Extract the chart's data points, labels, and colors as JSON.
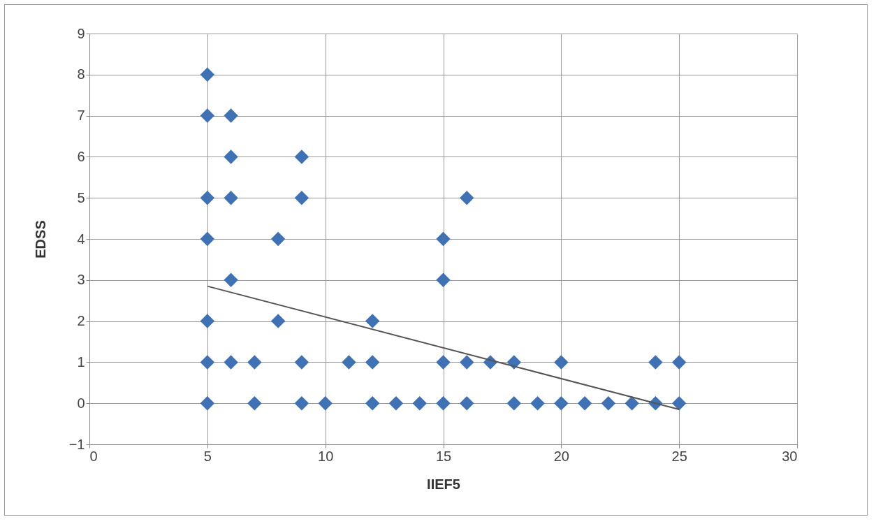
{
  "chart_data": {
    "type": "scatter",
    "xlabel": "IIEF5",
    "ylabel": "EDSS",
    "xlim": [
      0,
      30
    ],
    "ylim": [
      -1,
      9
    ],
    "xticks": [
      0,
      5,
      10,
      15,
      20,
      25,
      30
    ],
    "yticks": [
      -1,
      0,
      1,
      2,
      3,
      4,
      5,
      6,
      7,
      8,
      9
    ],
    "grid": true,
    "marker": "diamond",
    "series": [
      {
        "color": "#3f72b5",
        "x": [
          5,
          5,
          5,
          5,
          5,
          5,
          5,
          6,
          6,
          6,
          6,
          6,
          7,
          7,
          8,
          8,
          9,
          9,
          9,
          9,
          10,
          11,
          12,
          12,
          12,
          13,
          14,
          15,
          15,
          15,
          15,
          16,
          16,
          16,
          17,
          18,
          18,
          19,
          20,
          20,
          21,
          22,
          23,
          24,
          24,
          25,
          25
        ],
        "values": [
          8,
          7,
          5,
          4,
          2,
          1,
          0,
          7,
          6,
          5,
          3,
          1,
          1,
          0,
          4,
          2,
          6,
          5,
          1,
          0,
          0,
          1,
          2,
          1,
          0,
          0,
          0,
          4,
          3,
          1,
          0,
          5,
          1,
          0,
          1,
          1,
          0,
          0,
          1,
          0,
          0,
          0,
          0,
          1,
          0,
          1,
          0
        ]
      },
      {
        "type": "line",
        "color": "#555555",
        "x": [
          5,
          25
        ],
        "values": [
          2.85,
          -0.15
        ],
        "marker": "none"
      }
    ]
  }
}
